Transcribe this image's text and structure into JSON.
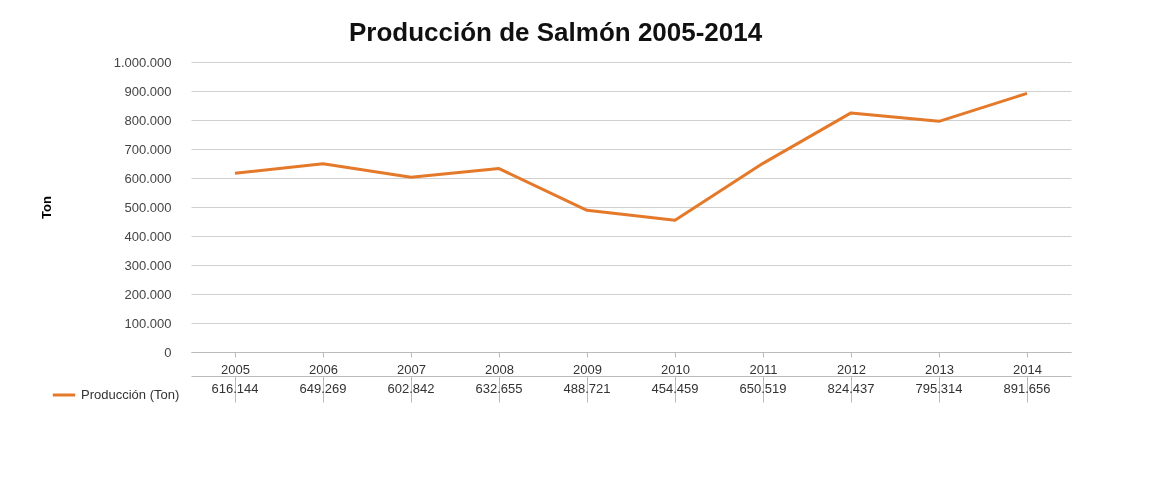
{
  "chart_data": {
    "type": "line",
    "title": "Producción de Salmón 2005-2014",
    "ylabel": "Ton",
    "categories": [
      "2005",
      "2006",
      "2007",
      "2008",
      "2009",
      "2010",
      "2011",
      "2012",
      "2013",
      "2014"
    ],
    "series": [
      {
        "name": "Producción (Ton)",
        "color": "#e5792a",
        "values": [
          616144,
          649269,
          602842,
          632655,
          488721,
          454459,
          650519,
          824437,
          795314,
          891656
        ],
        "value_labels": [
          "616.144",
          "649.269",
          "602.842",
          "632.655",
          "488.721",
          "454.459",
          "650.519",
          "824.437",
          "795.314",
          "891.656"
        ]
      }
    ],
    "ylim": [
      0,
      1000000
    ],
    "yticks": [
      {
        "value": 0,
        "label": "0"
      },
      {
        "value": 100000,
        "label": "100.000"
      },
      {
        "value": 200000,
        "label": "200.000"
      },
      {
        "value": 300000,
        "label": "300.000"
      },
      {
        "value": 400000,
        "label": "400.000"
      },
      {
        "value": 500000,
        "label": "500.000"
      },
      {
        "value": 600000,
        "label": "600.000"
      },
      {
        "value": 700000,
        "label": "700.000"
      },
      {
        "value": 800000,
        "label": "800.000"
      },
      {
        "value": 900000,
        "label": "900.000"
      },
      {
        "value": 1000000,
        "label": "1.000.000"
      }
    ],
    "grid": "y",
    "legend": "bottom left",
    "marker": "none",
    "line_style": "solid"
  }
}
